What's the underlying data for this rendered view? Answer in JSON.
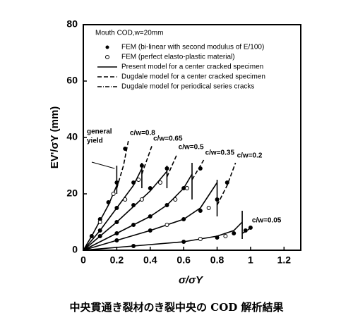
{
  "chart_data": {
    "type": "line",
    "xlabel": "σ/σY",
    "ylabel": "EV'/σY (mm)",
    "xlim": [
      0,
      1.3
    ],
    "ylim": [
      0,
      80
    ],
    "xticks": [
      0,
      0.2,
      0.4,
      0.6,
      0.8,
      1.0,
      1.2
    ],
    "yticks": [
      0,
      20,
      40,
      60,
      80
    ],
    "legend_title": "Mouth COD,w=20mm",
    "legend": [
      {
        "label": "FEM (bi-linear with second modulus of E/100)",
        "style": "dot"
      },
      {
        "label": "FEM (perfect elasto-plastic material)",
        "style": "circle"
      },
      {
        "label": "Present model for a center cracked specimen",
        "style": "solid"
      },
      {
        "label": "Dugdale model for a center cracked specimen",
        "style": "dashed"
      },
      {
        "label": "Dugdale model for periodical series cracks",
        "style": "dashdot"
      }
    ],
    "annotation": [
      "general",
      "yield"
    ],
    "curves": [
      {
        "label": "c/w=0.8",
        "present": {
          "x": [
            0,
            0.05,
            0.1,
            0.15,
            0.2
          ],
          "y": [
            0,
            5,
            10.5,
            16,
            23
          ]
        },
        "dugdale": {
          "x": [
            0.2,
            0.24,
            0.27
          ],
          "y": [
            22,
            30,
            39
          ]
        },
        "fem": {
          "x": [
            0.05,
            0.1,
            0.15,
            0.2,
            0.25
          ],
          "y": [
            5,
            11,
            17,
            24,
            36
          ]
        },
        "fem_perfect": {
          "x": [
            0.1,
            0.18
          ],
          "y": [
            10,
            20
          ]
        },
        "yield": {
          "x": 0.2,
          "y": [
            20,
            30
          ]
        }
      },
      {
        "label": "c/w=0.65",
        "present": {
          "x": [
            0,
            0.1,
            0.2,
            0.3,
            0.35
          ],
          "y": [
            0,
            7,
            15,
            23,
            29
          ]
        },
        "dugdale": {
          "x": [
            0.35,
            0.38,
            0.41
          ],
          "y": [
            27,
            32,
            37
          ]
        },
        "fem": {
          "x": [
            0.1,
            0.2,
            0.3,
            0.35
          ],
          "y": [
            7,
            15,
            24,
            30
          ]
        },
        "fem_perfect": {
          "x": [
            0.25,
            0.33
          ],
          "y": [
            18,
            25
          ]
        },
        "yield": {
          "x": 0.35,
          "y": [
            22,
            31
          ]
        }
      },
      {
        "label": "c/w=0.5",
        "present": {
          "x": [
            0,
            0.1,
            0.2,
            0.3,
            0.4,
            0.5
          ],
          "y": [
            0,
            5,
            10,
            15.5,
            21,
            28
          ]
        },
        "dugdale": {
          "x": [
            0.5,
            0.53,
            0.56
          ],
          "y": [
            26,
            30,
            34
          ]
        },
        "fem": {
          "x": [
            0.1,
            0.2,
            0.3,
            0.4,
            0.5
          ],
          "y": [
            5,
            10,
            16,
            22,
            29
          ]
        },
        "fem_perfect": {
          "x": [
            0.35,
            0.46
          ],
          "y": [
            18,
            24
          ]
        },
        "yield": {
          "x": 0.5,
          "y": [
            22,
            30
          ]
        }
      },
      {
        "label": "c/w=0.35",
        "present": {
          "x": [
            0,
            0.2,
            0.4,
            0.5,
            0.6,
            0.65
          ],
          "y": [
            0,
            6,
            12,
            16,
            22,
            27
          ]
        },
        "dugdale": {
          "x": [
            0.65,
            0.69,
            0.72
          ],
          "y": [
            25,
            29,
            32
          ]
        },
        "fem": {
          "x": [
            0.2,
            0.3,
            0.4,
            0.5,
            0.6,
            0.7
          ],
          "y": [
            6,
            9,
            12,
            16,
            22,
            29
          ]
        },
        "fem_perfect": {
          "x": [
            0.55,
            0.62
          ],
          "y": [
            18,
            22
          ]
        },
        "yield": {
          "x": 0.65,
          "y": [
            18,
            31
          ]
        }
      },
      {
        "label": "c/w=0.2",
        "present": {
          "x": [
            0,
            0.2,
            0.4,
            0.6,
            0.7,
            0.8
          ],
          "y": [
            0,
            3.5,
            7,
            11,
            15,
            24
          ]
        },
        "dugdale": {
          "x": [
            0.8,
            0.86,
            0.91
          ],
          "y": [
            16,
            23,
            31
          ]
        },
        "fem": {
          "x": [
            0.2,
            0.4,
            0.6,
            0.7,
            0.8,
            0.86
          ],
          "y": [
            3.5,
            7,
            11,
            14,
            18,
            24
          ]
        },
        "fem_perfect": {
          "x": [
            0.5,
            0.75
          ],
          "y": [
            9,
            15
          ]
        },
        "yield": {
          "x": 0.8,
          "y": [
            12,
            25
          ]
        }
      },
      {
        "label": "c/w=0.05",
        "present": {
          "x": [
            0,
            0.3,
            0.6,
            0.8,
            0.9,
            0.95
          ],
          "y": [
            0,
            1.5,
            3,
            5,
            7,
            10
          ]
        },
        "dugdale": {
          "x": [
            0.95,
            0.98,
            1.0
          ],
          "y": [
            6,
            7,
            8
          ]
        },
        "fem": {
          "x": [
            0.3,
            0.6,
            0.8,
            0.9,
            0.97,
            1.0
          ],
          "y": [
            1.5,
            3,
            4.5,
            6,
            7,
            8
          ]
        },
        "fem_perfect": {
          "x": [
            0.7,
            0.85
          ],
          "y": [
            4,
            5
          ]
        },
        "yield": {
          "x": 0.95,
          "y": [
            4,
            14
          ]
        }
      }
    ]
  },
  "caption": "中央貫通き裂材のき裂中央の COD 解析結果"
}
